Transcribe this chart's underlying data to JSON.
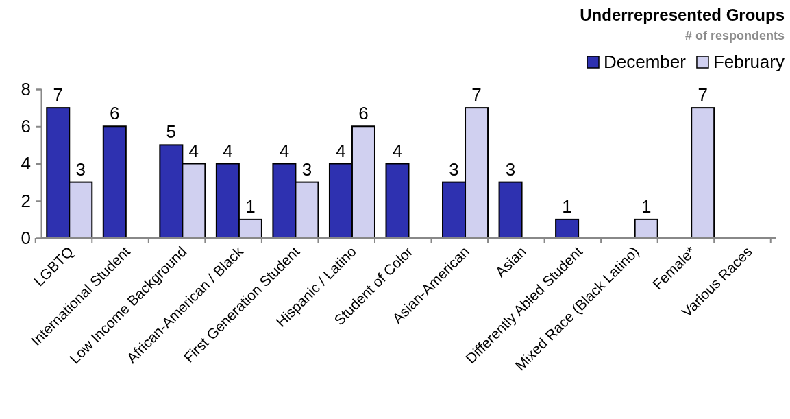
{
  "chart_data": {
    "type": "bar",
    "title": "Underrepresented Groups",
    "subtitle": "# of respondents",
    "categories": [
      "LGBTQ",
      "International Student",
      "Low Income Background",
      "African-American / Black",
      "First Generation Student",
      "Hispanic / Latino",
      "Student of Color",
      "Asian-American",
      "Asian",
      "Differently Abled Student",
      "Mixed Race (Black Latino)",
      "Female*",
      "Various Races"
    ],
    "series": [
      {
        "name": "December",
        "color": "#2e31b0",
        "values": [
          7,
          6,
          5,
          4,
          4,
          4,
          4,
          3,
          3,
          1,
          null,
          null,
          null
        ]
      },
      {
        "name": "February",
        "color": "#d0d0f0",
        "values": [
          3,
          null,
          4,
          1,
          3,
          6,
          null,
          7,
          null,
          null,
          1,
          7,
          null
        ]
      }
    ],
    "ylim": [
      0,
      8
    ],
    "yticks": [
      0,
      2,
      4,
      6,
      8
    ],
    "data_labels": true,
    "legend": "top right",
    "grid": false
  }
}
